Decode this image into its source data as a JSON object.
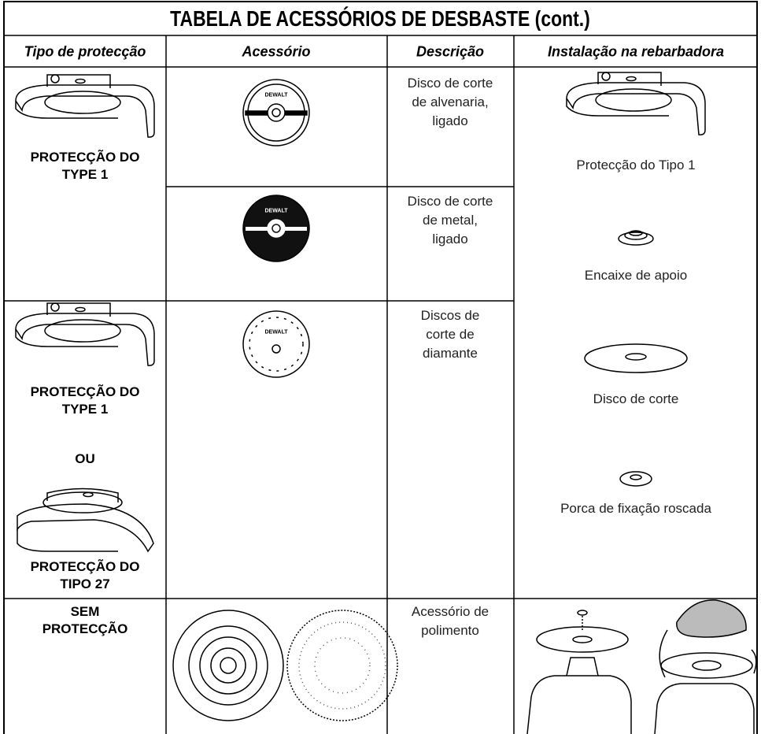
{
  "header": {
    "title": "TABELA DE ACESSÓRIOS DE DESBASTE (cont.)"
  },
  "columns": [
    "Tipo de protecção",
    "Acessório",
    "Descrição",
    "Instalação na rebarbadora"
  ],
  "logo": "DEWALT",
  "guards": [
    {
      "lines": [
        "PROTECÇÃO DO",
        "TYPE 1"
      ]
    },
    {
      "lines": [
        "PROTECÇÃO DO",
        "TYPE 1"
      ]
    },
    {
      "lines": [
        "OU"
      ]
    },
    {
      "lines": [
        "PROTECÇÃO DO",
        "TIPO 27"
      ]
    },
    {
      "lines": [
        "SEM",
        "PROTECÇÃO"
      ]
    }
  ],
  "descriptions": [
    {
      "lines": [
        "Disco de corte",
        "de alvenaria,",
        "ligado"
      ]
    },
    {
      "lines": [
        "Disco de corte",
        "de metal,",
        "ligado"
      ]
    },
    {
      "lines": [
        "Discos de",
        "corte de",
        "diamante"
      ]
    },
    {
      "lines": [
        "Acessório de",
        "polimento"
      ]
    }
  ],
  "installation": [
    "Protecção do Tipo 1",
    "Encaixe de apoio",
    "Disco de corte",
    "Porca de fixação roscada"
  ]
}
